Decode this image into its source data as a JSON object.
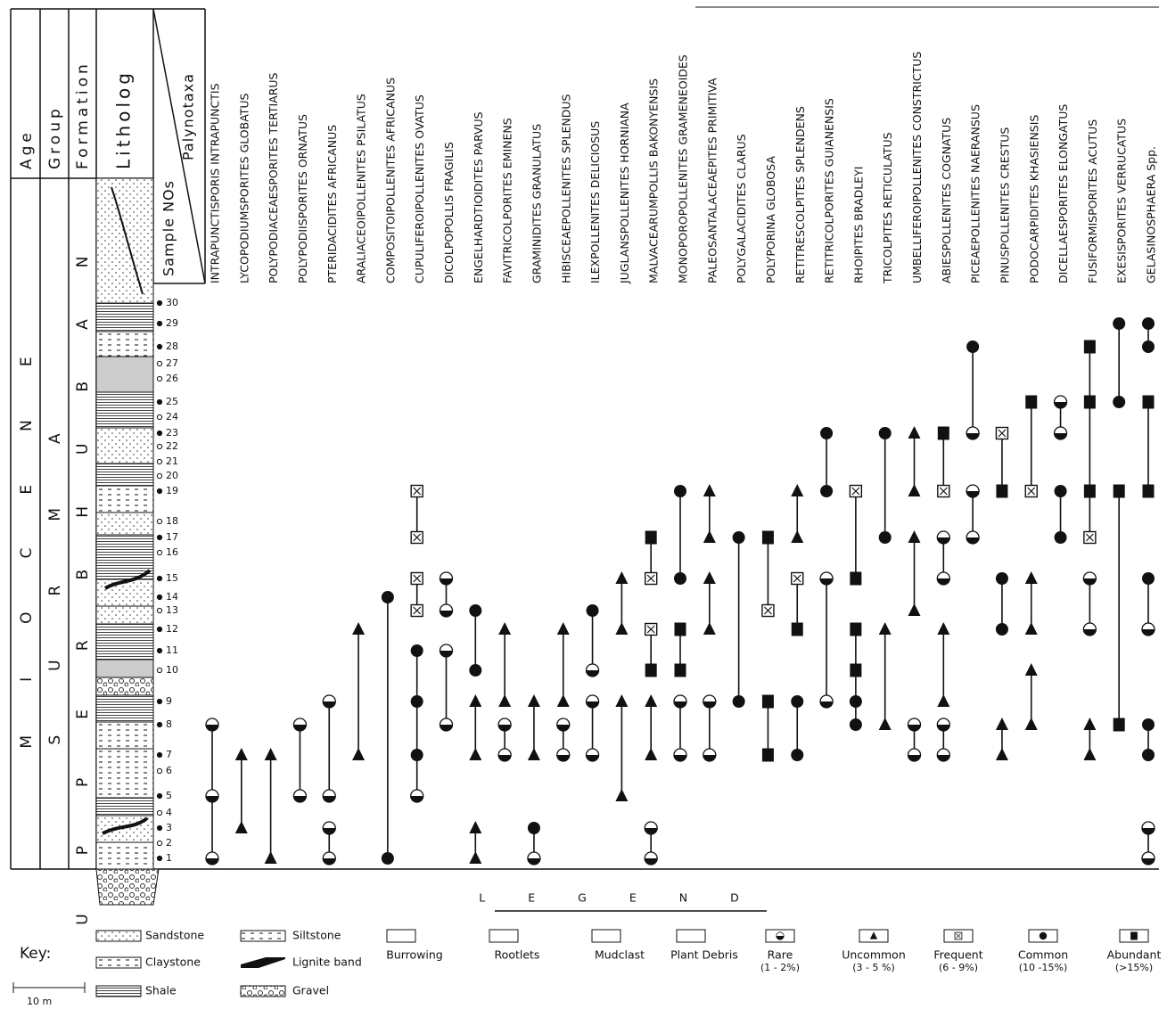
{
  "header": {
    "age": "Age",
    "group": "Group",
    "formation": "Formation",
    "litholog": "Litholog",
    "sample_nos": "Sample NOs",
    "palynotaxa": "Palynotaxa"
  },
  "columns": {
    "age": "MIOCENE",
    "group": "SURMA",
    "formation_lower": "UPPER",
    "formation_upper": "BHUBAN"
  },
  "samples": [
    1,
    2,
    3,
    4,
    5,
    6,
    7,
    8,
    9,
    10,
    11,
    12,
    13,
    14,
    15,
    16,
    17,
    18,
    19,
    20,
    21,
    22,
    23,
    24,
    25,
    26,
    27,
    28,
    29,
    30
  ],
  "sample_filled": [
    true,
    false,
    true,
    false,
    true,
    false,
    true,
    true,
    true,
    false,
    true,
    true,
    false,
    true,
    true,
    false,
    true,
    false,
    true,
    false,
    false,
    false,
    true,
    false,
    true,
    false,
    false,
    true,
    true,
    true
  ],
  "taxa": [
    {
      "name": "INTRAPUNCTISPORIS INTRAPUNCTIS",
      "occurrences": [
        [
          8,
          "Rare"
        ],
        [
          5,
          "Rare"
        ],
        [
          1,
          "Rare"
        ]
      ],
      "ranges": [
        [
          8,
          1
        ]
      ]
    },
    {
      "name": "LYCOPODIUMSPORITES GLOBATUS",
      "occurrences": [
        [
          7,
          "Uncommon"
        ],
        [
          3,
          "Uncommon"
        ]
      ],
      "ranges": [
        [
          7,
          3
        ]
      ]
    },
    {
      "name": "POLYPODIACEAESPORITES TERTIARUS",
      "occurrences": [
        [
          7,
          "Uncommon"
        ],
        [
          1,
          "Uncommon"
        ]
      ],
      "ranges": [
        [
          7,
          1
        ]
      ]
    },
    {
      "name": "POLYPODIISPORITES ORNATUS",
      "occurrences": [
        [
          8,
          "Rare"
        ],
        [
          5,
          "Rare"
        ]
      ],
      "ranges": [
        [
          8,
          5
        ]
      ]
    },
    {
      "name": "PTERIDACIDITES AFRICANUS",
      "occurrences": [
        [
          9,
          "Rare"
        ],
        [
          5,
          "Rare"
        ],
        [
          3,
          "Rare"
        ],
        [
          1,
          "Rare"
        ]
      ],
      "ranges": [
        [
          9,
          5
        ],
        [
          3,
          1
        ]
      ]
    },
    {
      "name": "ARALIACEOIPOLLENITES PSILATUS",
      "occurrences": [
        [
          12,
          "Uncommon"
        ],
        [
          7,
          "Uncommon"
        ]
      ],
      "ranges": [
        [
          12,
          7
        ]
      ]
    },
    {
      "name": "COMPOSITOIPOLLENITES AFRICANUS",
      "occurrences": [
        [
          14,
          "Common"
        ],
        [
          1,
          "Common"
        ]
      ],
      "ranges": [
        [
          14,
          1
        ]
      ]
    },
    {
      "name": "CUPULIFEROIPOLLENITES OVATUS",
      "occurrences": [
        [
          19,
          "Frequent"
        ],
        [
          17,
          "Frequent"
        ],
        [
          15,
          "Frequent"
        ],
        [
          13,
          "Frequent"
        ],
        [
          11,
          "Common"
        ],
        [
          9,
          "Common"
        ],
        [
          7,
          "Common"
        ],
        [
          5,
          "Rare"
        ]
      ],
      "ranges": [
        [
          19,
          17
        ],
        [
          15,
          13
        ],
        [
          11,
          5
        ]
      ]
    },
    {
      "name": "DICOLPOPOLLIS FRAGILIS",
      "occurrences": [
        [
          15,
          "Rare"
        ],
        [
          13,
          "Rare"
        ],
        [
          11,
          "Rare"
        ],
        [
          8,
          "Rare"
        ]
      ],
      "ranges": [
        [
          15,
          13
        ],
        [
          11,
          8
        ]
      ]
    },
    {
      "name": "ENGELHARDTIOIDITES PARVUS",
      "occurrences": [
        [
          13,
          "Common"
        ],
        [
          10,
          "Common"
        ],
        [
          9,
          "Uncommon"
        ],
        [
          7,
          "Uncommon"
        ],
        [
          3,
          "Uncommon"
        ],
        [
          1,
          "Uncommon"
        ]
      ],
      "ranges": [
        [
          13,
          10
        ],
        [
          9,
          7
        ],
        [
          3,
          1
        ]
      ]
    },
    {
      "name": "FAVITRICOLPORITES EMINENS",
      "occurrences": [
        [
          12,
          "Uncommon"
        ],
        [
          9,
          "Uncommon"
        ],
        [
          8,
          "Rare"
        ],
        [
          7,
          "Rare"
        ]
      ],
      "ranges": [
        [
          12,
          9
        ],
        [
          8,
          7
        ]
      ]
    },
    {
      "name": "GRAMINIDITES GRANULATUS",
      "occurrences": [
        [
          9,
          "Uncommon"
        ],
        [
          7,
          "Uncommon"
        ],
        [
          3,
          "Common"
        ],
        [
          1,
          "Rare"
        ]
      ],
      "ranges": [
        [
          9,
          7
        ],
        [
          3,
          1
        ]
      ]
    },
    {
      "name": "HIBISCEAEPOLLENITES SPLENDUS",
      "occurrences": [
        [
          12,
          "Uncommon"
        ],
        [
          9,
          "Uncommon"
        ],
        [
          8,
          "Rare"
        ],
        [
          7,
          "Rare"
        ]
      ],
      "ranges": [
        [
          12,
          9
        ],
        [
          8,
          7
        ]
      ]
    },
    {
      "name": "ILEXPOLLENITES DELICIOSUS",
      "occurrences": [
        [
          13,
          "Common"
        ],
        [
          10,
          "Rare"
        ],
        [
          9,
          "Rare"
        ],
        [
          7,
          "Rare"
        ]
      ],
      "ranges": [
        [
          13,
          10
        ],
        [
          9,
          7
        ]
      ]
    },
    {
      "name": "JUGLANSPOLLENITES HORNIANA",
      "occurrences": [
        [
          15,
          "Uncommon"
        ],
        [
          12,
          "Uncommon"
        ],
        [
          9,
          "Uncommon"
        ],
        [
          5,
          "Uncommon"
        ]
      ],
      "ranges": [
        [
          15,
          12
        ],
        [
          9,
          5
        ]
      ]
    },
    {
      "name": "MALVACEARUMPOLLIS BAKONYENSIS",
      "occurrences": [
        [
          17,
          "Abundant"
        ],
        [
          15,
          "Frequent"
        ],
        [
          12,
          "Frequent"
        ],
        [
          10,
          "Abundant"
        ],
        [
          9,
          "Uncommon"
        ],
        [
          7,
          "Uncommon"
        ],
        [
          3,
          "Rare"
        ],
        [
          1,
          "Rare"
        ]
      ],
      "ranges": [
        [
          17,
          15
        ],
        [
          12,
          10
        ],
        [
          9,
          7
        ],
        [
          3,
          1
        ]
      ]
    },
    {
      "name": "MONOPOROPOLLENITES GRAMENEOIDES",
      "occurrences": [
        [
          19,
          "Common"
        ],
        [
          15,
          "Common"
        ],
        [
          12,
          "Abundant"
        ],
        [
          10,
          "Abundant"
        ],
        [
          9,
          "Rare"
        ],
        [
          7,
          "Rare"
        ]
      ],
      "ranges": [
        [
          19,
          15
        ],
        [
          12,
          10
        ],
        [
          9,
          7
        ]
      ]
    },
    {
      "name": "PALEOSANTALACEAEPITES PRIMITIVA",
      "occurrences": [
        [
          19,
          "Uncommon"
        ],
        [
          17,
          "Uncommon"
        ],
        [
          15,
          "Uncommon"
        ],
        [
          12,
          "Uncommon"
        ],
        [
          9,
          "Rare"
        ],
        [
          7,
          "Rare"
        ]
      ],
      "ranges": [
        [
          19,
          17
        ],
        [
          15,
          12
        ],
        [
          9,
          7
        ]
      ]
    },
    {
      "name": "POLYGALACIDITES CLARUS",
      "occurrences": [
        [
          17,
          "Common"
        ],
        [
          9,
          "Common"
        ]
      ],
      "ranges": [
        [
          17,
          9
        ]
      ]
    },
    {
      "name": "POLYPORINA GLOBOSA",
      "occurrences": [
        [
          17,
          "Abundant"
        ],
        [
          13,
          "Frequent"
        ],
        [
          9,
          "Abundant"
        ],
        [
          7,
          "Abundant"
        ]
      ],
      "ranges": [
        [
          17,
          13
        ],
        [
          9,
          7
        ]
      ]
    },
    {
      "name": "RETITRESCOLPITES SPLENDENS",
      "occurrences": [
        [
          19,
          "Uncommon"
        ],
        [
          17,
          "Uncommon"
        ],
        [
          15,
          "Frequent"
        ],
        [
          12,
          "Abundant"
        ],
        [
          9,
          "Common"
        ],
        [
          7,
          "Common"
        ]
      ],
      "ranges": [
        [
          19,
          17
        ],
        [
          15,
          12
        ],
        [
          9,
          7
        ]
      ]
    },
    {
      "name": "RETITRICOLPORITES GUIANENSIS",
      "occurrences": [
        [
          23,
          "Common"
        ],
        [
          19,
          "Common"
        ],
        [
          15,
          "Rare"
        ],
        [
          9,
          "Rare"
        ]
      ],
      "ranges": [
        [
          23,
          19
        ],
        [
          15,
          9
        ]
      ]
    },
    {
      "name": "RHOIPITES BRADLEYI",
      "occurrences": [
        [
          19,
          "Frequent"
        ],
        [
          15,
          "Abundant"
        ],
        [
          12,
          "Abundant"
        ],
        [
          10,
          "Abundant"
        ],
        [
          9,
          "Common"
        ],
        [
          8,
          "Common"
        ]
      ],
      "ranges": [
        [
          19,
          15
        ],
        [
          12,
          8
        ]
      ]
    },
    {
      "name": "TRICOLPITES RETICULATUS",
      "occurrences": [
        [
          23,
          "Common"
        ],
        [
          17,
          "Common"
        ],
        [
          12,
          "Uncommon"
        ],
        [
          8,
          "Uncommon"
        ]
      ],
      "ranges": [
        [
          23,
          17
        ],
        [
          12,
          8
        ]
      ]
    },
    {
      "name": "UMBELLIFEROIPOLLENITES CONSTRICTUS",
      "occurrences": [
        [
          23,
          "Uncommon"
        ],
        [
          19,
          "Uncommon"
        ],
        [
          17,
          "Uncommon"
        ],
        [
          13,
          "Uncommon"
        ],
        [
          8,
          "Rare"
        ],
        [
          7,
          "Rare"
        ]
      ],
      "ranges": [
        [
          23,
          19
        ],
        [
          17,
          13
        ],
        [
          8,
          7
        ]
      ]
    },
    {
      "name": "ABIESPOLLENITES COGNATUS",
      "occurrences": [
        [
          23,
          "Abundant"
        ],
        [
          19,
          "Frequent"
        ],
        [
          17,
          "Rare"
        ],
        [
          15,
          "Rare"
        ],
        [
          12,
          "Uncommon"
        ],
        [
          9,
          "Uncommon"
        ],
        [
          8,
          "Rare"
        ],
        [
          7,
          "Rare"
        ]
      ],
      "ranges": [
        [
          23,
          19
        ],
        [
          17,
          15
        ],
        [
          12,
          9
        ],
        [
          8,
          7
        ]
      ]
    },
    {
      "name": "PICEAEPOLLENITES NAERANSUS",
      "occurrences": [
        [
          28,
          "Common"
        ],
        [
          23,
          "Rare"
        ],
        [
          19,
          "Rare"
        ],
        [
          17,
          "Rare"
        ]
      ],
      "ranges": [
        [
          28,
          23
        ],
        [
          19,
          17
        ]
      ]
    },
    {
      "name": "PINUSPOLLENITES CRESTUS",
      "occurrences": [
        [
          23,
          "Frequent"
        ],
        [
          19,
          "Abundant"
        ],
        [
          15,
          "Common"
        ],
        [
          12,
          "Common"
        ],
        [
          8,
          "Uncommon"
        ],
        [
          7,
          "Uncommon"
        ]
      ],
      "ranges": [
        [
          23,
          19
        ],
        [
          15,
          12
        ],
        [
          8,
          7
        ]
      ]
    },
    {
      "name": "PODOCARPIDITES KHASIENSIS",
      "occurrences": [
        [
          25,
          "Abundant"
        ],
        [
          19,
          "Frequent"
        ],
        [
          15,
          "Uncommon"
        ],
        [
          12,
          "Uncommon"
        ],
        [
          10,
          "Uncommon"
        ],
        [
          8,
          "Uncommon"
        ]
      ],
      "ranges": [
        [
          25,
          19
        ],
        [
          15,
          12
        ],
        [
          10,
          8
        ]
      ]
    },
    {
      "name": "DICELLAESPORITES ELONGATUS",
      "occurrences": [
        [
          25,
          "Rare"
        ],
        [
          23,
          "Rare"
        ],
        [
          19,
          "Common"
        ],
        [
          17,
          "Common"
        ]
      ],
      "ranges": [
        [
          25,
          23
        ],
        [
          19,
          17
        ]
      ]
    },
    {
      "name": "FUSIFORMISPORITES ACUTUS",
      "occurrences": [
        [
          28,
          "Abundant"
        ],
        [
          25,
          "Abundant"
        ],
        [
          19,
          "Abundant"
        ],
        [
          17,
          "Frequent"
        ],
        [
          15,
          "Rare"
        ],
        [
          12,
          "Rare"
        ],
        [
          8,
          "Uncommon"
        ],
        [
          7,
          "Uncommon"
        ]
      ],
      "ranges": [
        [
          28,
          17
        ],
        [
          15,
          12
        ],
        [
          8,
          7
        ]
      ]
    },
    {
      "name": "EXESISPORITES VERRUCATUS",
      "occurrences": [
        [
          29,
          "Common"
        ],
        [
          25,
          "Common"
        ],
        [
          19,
          "Abundant"
        ],
        [
          8,
          "Abundant"
        ]
      ],
      "ranges": [
        [
          29,
          25
        ],
        [
          19,
          8
        ]
      ]
    },
    {
      "name": "GELASINOSPHAERA Spp.",
      "occurrences": [
        [
          29,
          "Common"
        ],
        [
          28,
          "Common"
        ],
        [
          25,
          "Abundant"
        ],
        [
          19,
          "Abundant"
        ],
        [
          15,
          "Common"
        ],
        [
          12,
          "Rare"
        ],
        [
          8,
          "Common"
        ],
        [
          7,
          "Common"
        ],
        [
          3,
          "Rare"
        ],
        [
          1,
          "Rare"
        ]
      ],
      "ranges": [
        [
          29,
          28
        ],
        [
          25,
          19
        ],
        [
          15,
          12
        ],
        [
          8,
          7
        ],
        [
          3,
          1
        ]
      ]
    }
  ],
  "legend": {
    "title": "LEGEND",
    "abundance": [
      {
        "name": "Rare",
        "range": "(1 - 2%)"
      },
      {
        "name": "Uncommon",
        "range": "(3 - 5 %)"
      },
      {
        "name": "Frequent",
        "range": "(6 - 9%)"
      },
      {
        "name": "Common",
        "range": "(10 -15%)"
      },
      {
        "name": "Abundant",
        "range": "(>15%)"
      }
    ],
    "key_title": "Key:",
    "lithology": [
      "Sandstone",
      "Claystone",
      "Shale",
      "Siltstone",
      "Lignite band",
      "Gravel"
    ],
    "features": [
      "Burrowing",
      "Rootlets",
      "Mudclast",
      "Plant Debris"
    ],
    "scale": "10 m"
  }
}
